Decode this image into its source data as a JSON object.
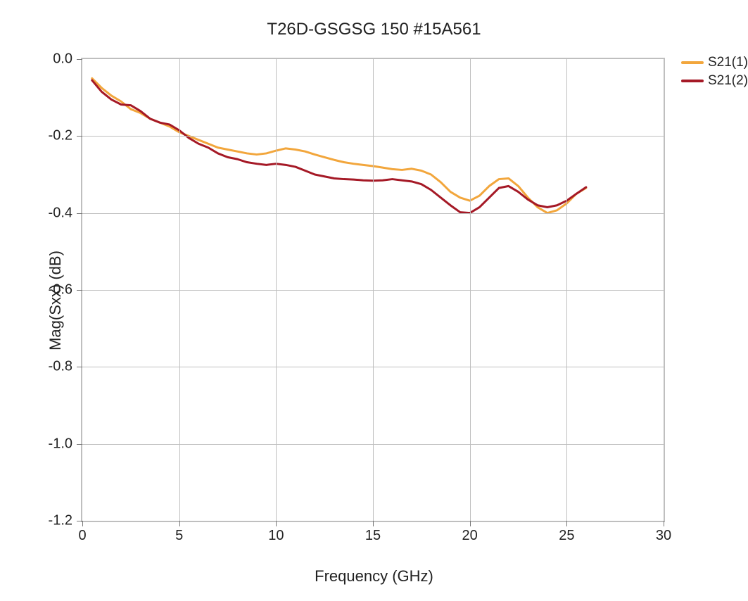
{
  "chart": {
    "type": "line",
    "title": "T26D-GSGSG 150 #15A561",
    "title_fontsize": 24,
    "xlabel": "Frequency (GHz)",
    "ylabel": "Mag(Sxx) (dB)",
    "label_fontsize": 22,
    "tick_fontsize": 20,
    "background_color": "#ffffff",
    "grid_color": "#bfbfbf",
    "frame_color": "#bfbfbf",
    "line_width": 3,
    "xlim": [
      0,
      30
    ],
    "ylim": [
      -1.2,
      0.0
    ],
    "xticks": [
      0,
      5,
      10,
      15,
      20,
      25,
      30
    ],
    "yticks": [
      0.0,
      -0.2,
      -0.4,
      -0.6,
      -0.8,
      -1.0,
      -1.2
    ],
    "xtick_labels": [
      "0",
      "5",
      "10",
      "15",
      "20",
      "25",
      "30"
    ],
    "ytick_labels": [
      "0.0",
      "-0.2",
      "-0.4",
      "-0.6",
      "-0.8",
      "-1.0",
      "-1.2"
    ],
    "legend": {
      "position": "right-top",
      "items": [
        {
          "label": "S21(1)",
          "color": "#f2a63c"
        },
        {
          "label": "S21(2)",
          "color": "#a51926"
        }
      ]
    },
    "series": [
      {
        "name": "S21(1)",
        "color": "#f2a63c",
        "x": [
          0.5,
          1,
          1.5,
          2,
          2.5,
          3,
          3.5,
          4,
          4.5,
          5,
          5.5,
          6,
          6.5,
          7,
          7.5,
          8,
          8.5,
          9,
          9.5,
          10,
          10.5,
          11,
          11.5,
          12,
          12.5,
          13,
          13.5,
          14,
          14.5,
          15,
          15.5,
          16,
          16.5,
          17,
          17.5,
          18,
          18.5,
          19,
          19.5,
          20,
          20.5,
          21,
          21.5,
          22,
          22.5,
          23,
          23.5,
          24,
          24.5,
          25,
          25.5,
          26
        ],
        "y": [
          -0.05,
          -0.075,
          -0.095,
          -0.11,
          -0.13,
          -0.14,
          -0.155,
          -0.165,
          -0.175,
          -0.19,
          -0.2,
          -0.21,
          -0.22,
          -0.23,
          -0.235,
          -0.24,
          -0.245,
          -0.248,
          -0.245,
          -0.238,
          -0.232,
          -0.235,
          -0.24,
          -0.248,
          -0.255,
          -0.262,
          -0.268,
          -0.272,
          -0.275,
          -0.278,
          -0.282,
          -0.286,
          -0.288,
          -0.285,
          -0.29,
          -0.3,
          -0.32,
          -0.345,
          -0.36,
          -0.368,
          -0.355,
          -0.33,
          -0.312,
          -0.31,
          -0.33,
          -0.36,
          -0.385,
          -0.4,
          -0.393,
          -0.375,
          -0.35,
          -0.335
        ]
      },
      {
        "name": "S21(2)",
        "color": "#a51926",
        "x": [
          0.5,
          1,
          1.5,
          2,
          2.5,
          3,
          3.5,
          4,
          4.5,
          5,
          5.5,
          6,
          6.5,
          7,
          7.5,
          8,
          8.5,
          9,
          9.5,
          10,
          10.5,
          11,
          11.5,
          12,
          12.5,
          13,
          13.5,
          14,
          14.5,
          15,
          15.5,
          16,
          16.5,
          17,
          17.5,
          18,
          18.5,
          19,
          19.5,
          20,
          20.5,
          21,
          21.5,
          22,
          22.5,
          23,
          23.5,
          24,
          24.5,
          25,
          25.5,
          26
        ],
        "y": [
          -0.055,
          -0.085,
          -0.105,
          -0.118,
          -0.12,
          -0.135,
          -0.155,
          -0.165,
          -0.17,
          -0.185,
          -0.205,
          -0.22,
          -0.23,
          -0.245,
          -0.255,
          -0.26,
          -0.268,
          -0.272,
          -0.275,
          -0.272,
          -0.275,
          -0.28,
          -0.29,
          -0.3,
          -0.305,
          -0.31,
          -0.312,
          -0.313,
          -0.315,
          -0.316,
          -0.315,
          -0.312,
          -0.315,
          -0.318,
          -0.325,
          -0.34,
          -0.36,
          -0.38,
          -0.398,
          -0.4,
          -0.385,
          -0.36,
          -0.335,
          -0.33,
          -0.345,
          -0.365,
          -0.38,
          -0.385,
          -0.38,
          -0.368,
          -0.35,
          -0.333
        ]
      }
    ]
  }
}
